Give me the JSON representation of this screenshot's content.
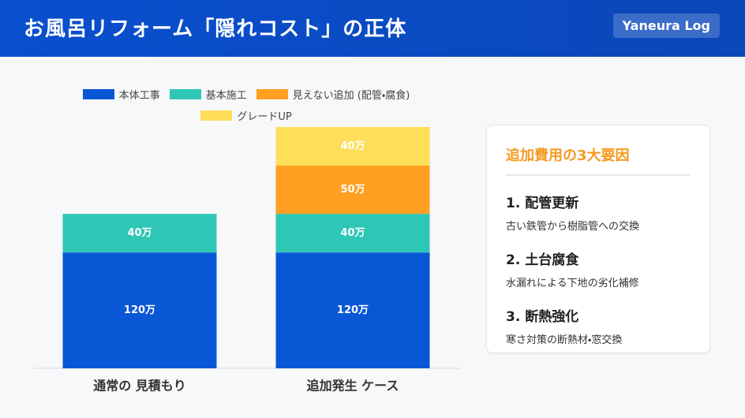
{
  "header": {
    "title": "お風呂リフォーム「隠れコスト」の正体",
    "badge": "Yaneura Log"
  },
  "chart_data": {
    "type": "stacked-bar",
    "categories": [
      "通常の 見積もり",
      "追加発生 ケース"
    ],
    "series": [
      {
        "name": "本体工事",
        "color": "#0a57d6",
        "values": [
          120,
          120
        ],
        "value_labels": [
          "120万",
          "120万"
        ]
      },
      {
        "name": "基本施工",
        "color": "#2ec7b6",
        "values": [
          40,
          40
        ],
        "value_labels": [
          "40万",
          "40万"
        ]
      },
      {
        "name": "見えない追加 (配管・腐食)",
        "color": "#ffa020",
        "values": [
          null,
          50
        ],
        "value_labels": [
          null,
          "50万"
        ]
      },
      {
        "name": "グレードUP",
        "color": "#ffde5a",
        "values": [
          null,
          40
        ],
        "value_labels": [
          null,
          "40万"
        ]
      }
    ]
  },
  "card": {
    "title": "追加費用の3大要因",
    "items": [
      {
        "heading": "1. 配管更新",
        "text": "古い鉄管から樹脂管への交換"
      },
      {
        "heading": "2. 土台腐食",
        "text": "水漏れによる下地の劣化補修"
      },
      {
        "heading": "3. 断熱強化",
        "text": "寒さ対策の断熱材・窓交換"
      }
    ]
  }
}
